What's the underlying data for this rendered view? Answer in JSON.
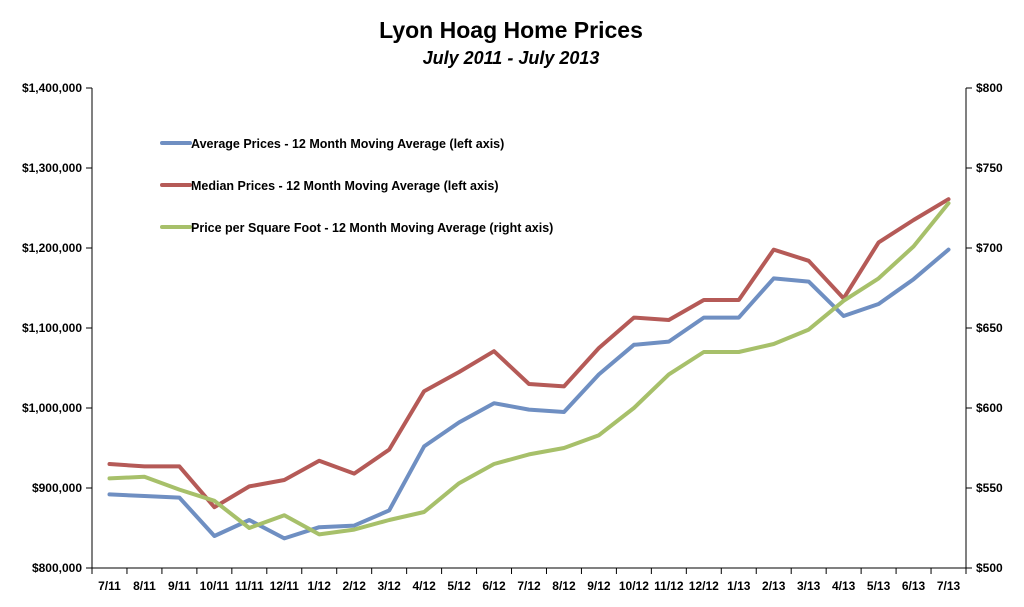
{
  "chart_data": {
    "type": "line",
    "title": "Lyon Hoag Home Prices",
    "subtitle": "July 2011 - July 2013",
    "categories": [
      "7/11",
      "8/11",
      "9/11",
      "10/11",
      "11/11",
      "12/11",
      "1/12",
      "2/12",
      "3/12",
      "4/12",
      "5/12",
      "6/12",
      "7/12",
      "8/12",
      "9/12",
      "10/12",
      "11/12",
      "12/12",
      "1/13",
      "2/13",
      "3/13",
      "4/13",
      "5/13",
      "6/13",
      "7/13"
    ],
    "left_axis": {
      "ylim": [
        800000,
        1400000
      ],
      "tick_values": [
        800000,
        900000,
        1000000,
        1100000,
        1200000,
        1300000,
        1400000
      ],
      "tick_labels": [
        "$800,000",
        "$900,000",
        "$1,000,000",
        "$1,100,000",
        "$1,200,000",
        "$1,300,000",
        "$1,400,000"
      ]
    },
    "right_axis": {
      "ylim": [
        500,
        800
      ],
      "tick_values": [
        500,
        550,
        600,
        650,
        700,
        750,
        800
      ],
      "tick_labels": [
        "$500",
        "$550",
        "$600",
        "$650",
        "$700",
        "$750",
        "$800"
      ]
    },
    "series": [
      {
        "name": "Average Prices - 12 Month Moving Average (left axis)",
        "axis": "left",
        "color": "#6f8fc2",
        "values": [
          892000,
          890000,
          888000,
          840000,
          860000,
          837000,
          851000,
          853000,
          872000,
          952000,
          982000,
          1006000,
          998000,
          995000,
          1042000,
          1079000,
          1083000,
          1113000,
          1113000,
          1162000,
          1158000,
          1115000,
          1130000,
          1161000,
          1198000
        ]
      },
      {
        "name": "Median Prices - 12 Month Moving Average (left axis)",
        "axis": "left",
        "color": "#b55a57",
        "values": [
          930000,
          927000,
          927000,
          876000,
          902000,
          910000,
          934000,
          918000,
          948000,
          1021000,
          1045000,
          1071000,
          1030000,
          1027000,
          1075000,
          1113000,
          1110000,
          1135000,
          1135000,
          1198000,
          1184000,
          1137000,
          1207000,
          1235000,
          1261000
        ]
      },
      {
        "name": "Price per Square Foot - 12 Month Moving Average (right axis)",
        "axis": "right",
        "color": "#a7c06a",
        "values": [
          556,
          557,
          549,
          542,
          525,
          533,
          521,
          524,
          530,
          535,
          553,
          565,
          571,
          575,
          583,
          600,
          621,
          635,
          635,
          640,
          649,
          667,
          681,
          701,
          728
        ]
      }
    ],
    "legend_placement": "top-left inside plot",
    "grid": false
  }
}
